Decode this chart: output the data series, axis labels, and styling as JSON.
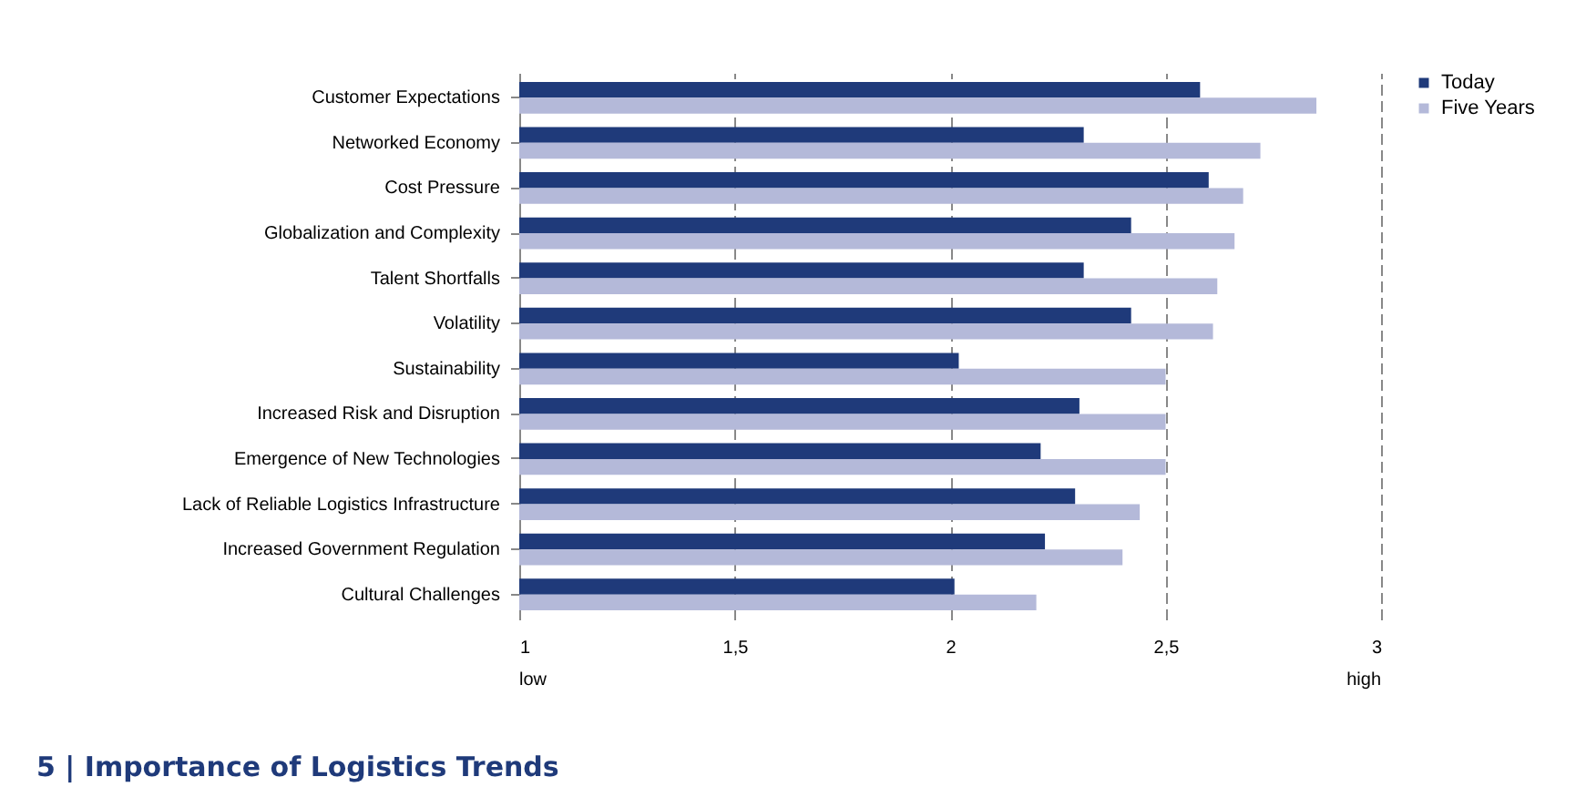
{
  "chart_data": {
    "type": "bar",
    "orientation": "horizontal",
    "title": "5 | Importance of Logistics Trends",
    "categories": [
      "Customer Expectations",
      "Networked Economy",
      "Cost Pressure",
      "Globalization and Complexity",
      "Talent Shortfalls",
      "Volatility",
      "Sustainability",
      "Increased Risk and Disruption",
      "Emergence of New Technologies",
      "Lack of Reliable Logistics Infrastructure",
      "Increased Government Regulation",
      "Cultural Challenges"
    ],
    "series": [
      {
        "name": "Today",
        "color": "#1f3a7a",
        "values": [
          2.58,
          2.31,
          2.6,
          2.42,
          2.31,
          2.42,
          2.02,
          2.3,
          2.21,
          2.29,
          2.22,
          2.01
        ]
      },
      {
        "name": "Five Years",
        "color": "#b4b9d9",
        "values": [
          2.85,
          2.72,
          2.68,
          2.66,
          2.62,
          2.61,
          2.5,
          2.5,
          2.5,
          2.44,
          2.4,
          2.2
        ]
      }
    ],
    "xlim": [
      1,
      3
    ],
    "xticks": [
      1,
      {
        "value": 1.5,
        "label": "1,5"
      },
      2,
      {
        "value": 2.5,
        "label": "2,5"
      },
      3
    ],
    "grid": "x",
    "legend": "right",
    "annotations": [
      "low",
      "high"
    ]
  }
}
